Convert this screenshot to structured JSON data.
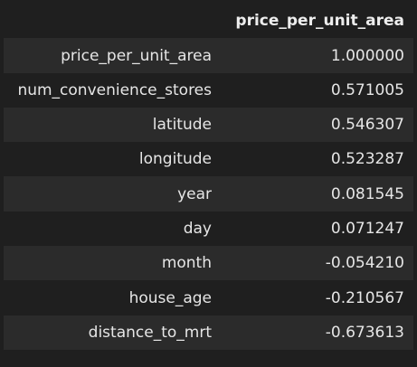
{
  "table": {
    "index_header": "",
    "column_header": "price_per_unit_area",
    "rows": [
      {
        "label": "price_per_unit_area",
        "value": "1.000000"
      },
      {
        "label": "num_convenience_stores",
        "value": "0.571005"
      },
      {
        "label": "latitude",
        "value": "0.546307"
      },
      {
        "label": "longitude",
        "value": "0.523287"
      },
      {
        "label": "year",
        "value": "0.081545"
      },
      {
        "label": "day",
        "value": "0.071247"
      },
      {
        "label": "month",
        "value": "-0.054210"
      },
      {
        "label": "house_age",
        "value": "-0.210567"
      },
      {
        "label": "distance_to_mrt",
        "value": "-0.673613"
      }
    ]
  },
  "colors": {
    "background": "#1f1f1f",
    "stripe": "#2b2b2b",
    "text": "#e6e6e6"
  }
}
